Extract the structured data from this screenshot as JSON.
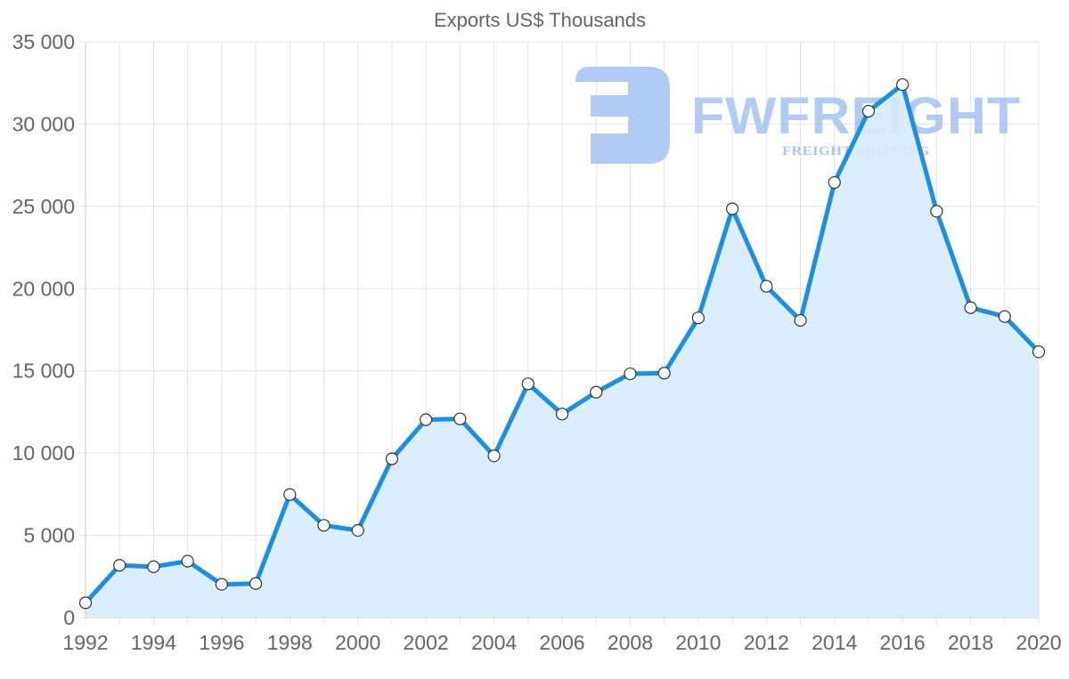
{
  "chart_data": {
    "type": "area",
    "title": "Exports US$ Thousands",
    "xlabel": "",
    "ylabel": "",
    "x": [
      1992,
      1993,
      1994,
      1995,
      1996,
      1997,
      1998,
      1999,
      2000,
      2001,
      2002,
      2003,
      2004,
      2005,
      2006,
      2007,
      2008,
      2009,
      2010,
      2011,
      2012,
      2013,
      2014,
      2015,
      2016,
      2017,
      2018,
      2019,
      2020
    ],
    "series": [
      {
        "name": "Exports US$ Thousands",
        "values": [
          900,
          3180,
          3090,
          3430,
          2020,
          2070,
          7480,
          5610,
          5300,
          9650,
          12030,
          12080,
          9830,
          14210,
          12370,
          13700,
          14820,
          14860,
          18220,
          24850,
          20140,
          18070,
          26450,
          30780,
          32400,
          24700,
          18840,
          18300,
          16160
        ]
      }
    ],
    "ylim": [
      0,
      35000
    ],
    "xlim": [
      1992,
      2020
    ],
    "y_ticks": [
      0,
      5000,
      10000,
      15000,
      20000,
      25000,
      30000,
      35000
    ],
    "y_tick_labels": [
      "0",
      "5 000",
      "10 000",
      "15 000",
      "20 000",
      "25 000",
      "30 000",
      "35 000"
    ],
    "x_ticks": [
      1992,
      1994,
      1996,
      1998,
      2000,
      2002,
      2004,
      2006,
      2008,
      2010,
      2012,
      2014,
      2016,
      2018,
      2020
    ],
    "x_tick_labels": [
      "1992",
      "1994",
      "1996",
      "1998",
      "2000",
      "2002",
      "2004",
      "2006",
      "2008",
      "2010",
      "2012",
      "2014",
      "2016",
      "2018",
      "2020"
    ],
    "grid": true,
    "legend": "none",
    "markers": true
  },
  "style": {
    "line_color": "#1a8fe8",
    "fill_color": "#d8ebfc",
    "marker_fill": "#ffffff",
    "marker_stroke": "#333333",
    "grid_color": "#e3e3e3",
    "axis_color": "#cccccc",
    "text_color": "#666666"
  },
  "watermark": {
    "brand": "FWFREIGHT",
    "tagline": "FREIGHT SHIPPING",
    "color": "#a9c6f3"
  }
}
